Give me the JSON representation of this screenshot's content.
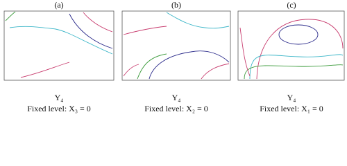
{
  "panels": [
    {
      "label": "(a)",
      "response": "Y₄",
      "caption": "Fixed level: X₃ = 0"
    },
    {
      "label": "(b)",
      "response": "Y₄",
      "caption": "Fixed level: X₂ = 0"
    },
    {
      "label": "(c)",
      "response": "Y₄",
      "caption": "Fixed level: X₁ = 0"
    }
  ]
}
